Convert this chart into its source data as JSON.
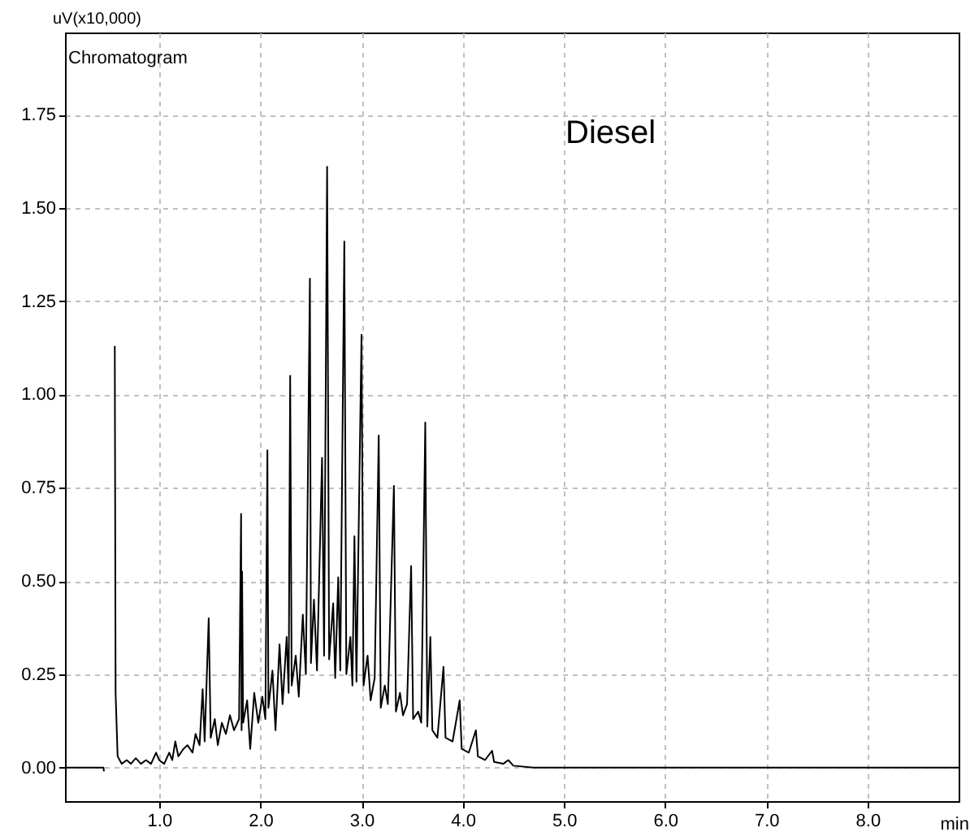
{
  "chart_data": {
    "type": "line",
    "xlabel": "min",
    "ylabel": "uV(x10,000)",
    "annotations": [
      "Chromatogram",
      "Diesel"
    ],
    "xlim": [
      0.07,
      8.9
    ],
    "ylim": [
      -0.09,
      1.97
    ],
    "xticks": [
      {
        "value": 1,
        "label": "1.0"
      },
      {
        "value": 2,
        "label": "2.0"
      },
      {
        "value": 3,
        "label": "3.0"
      },
      {
        "value": 4,
        "label": "4.0"
      },
      {
        "value": 5,
        "label": "5.0"
      },
      {
        "value": 6,
        "label": "6.0"
      },
      {
        "value": 7,
        "label": "7.0"
      },
      {
        "value": 8,
        "label": "8.0"
      }
    ],
    "yticks": [
      {
        "value": 0,
        "label": "0.00"
      },
      {
        "value": 0.25,
        "label": "0.25"
      },
      {
        "value": 0.5,
        "label": "0.50"
      },
      {
        "value": 0.75,
        "label": "0.75"
      },
      {
        "value": 1,
        "label": "1.00"
      },
      {
        "value": 1.25,
        "label": "1.25"
      },
      {
        "value": 1.5,
        "label": "1.50"
      },
      {
        "value": 1.75,
        "label": "1.75"
      }
    ],
    "grid": true,
    "marker": "none",
    "line_style": "solid",
    "x": [
      0.07,
      0.45,
      0.455,
      0.46,
      0.56,
      0.562,
      0.57,
      0.59,
      0.63,
      0.68,
      0.72,
      0.77,
      0.82,
      0.87,
      0.92,
      0.97,
      1.0,
      1.05,
      1.1,
      1.13,
      1.16,
      1.19,
      1.24,
      1.28,
      1.33,
      1.36,
      1.4,
      1.43,
      1.45,
      1.49,
      1.51,
      1.55,
      1.58,
      1.62,
      1.66,
      1.7,
      1.74,
      1.79,
      1.81,
      1.815,
      1.82,
      1.83,
      1.87,
      1.9,
      1.94,
      1.98,
      2.02,
      2.05,
      2.07,
      2.08,
      2.12,
      2.15,
      2.19,
      2.22,
      2.26,
      2.28,
      2.295,
      2.31,
      2.35,
      2.38,
      2.42,
      2.45,
      2.49,
      2.5,
      2.53,
      2.56,
      2.61,
      2.63,
      2.66,
      2.68,
      2.72,
      2.74,
      2.77,
      2.79,
      2.83,
      2.85,
      2.89,
      2.91,
      2.93,
      2.95,
      3.0,
      3.02,
      3.06,
      3.09,
      3.13,
      3.17,
      3.19,
      3.23,
      3.26,
      3.32,
      3.34,
      3.38,
      3.41,
      3.45,
      3.49,
      3.51,
      3.56,
      3.59,
      3.63,
      3.65,
      3.68,
      3.7,
      3.75,
      3.81,
      3.83,
      3.9,
      3.97,
      3.99,
      4.06,
      4.13,
      4.15,
      4.22,
      4.29,
      4.31,
      4.4,
      4.45,
      4.5,
      4.7,
      5.0,
      6.0,
      7.0,
      8.0,
      8.9
    ],
    "series": [
      {
        "color": "#000000",
        "values": [
          0.0,
          0.0,
          -0.01,
          null,
          null,
          1.13,
          0.2,
          0.03,
          0.01,
          0.02,
          0.01,
          0.025,
          0.01,
          0.02,
          0.01,
          0.04,
          0.02,
          0.01,
          0.04,
          0.02,
          0.07,
          0.03,
          0.05,
          0.06,
          0.04,
          0.09,
          0.06,
          0.21,
          0.07,
          0.4,
          0.08,
          0.13,
          0.06,
          0.12,
          0.09,
          0.14,
          0.1,
          0.13,
          0.68,
          0.1,
          0.525,
          0.12,
          0.18,
          0.05,
          0.2,
          0.12,
          0.19,
          0.13,
          0.85,
          0.16,
          0.26,
          0.1,
          0.33,
          0.17,
          0.35,
          0.2,
          1.05,
          0.22,
          0.3,
          0.19,
          0.41,
          0.25,
          1.31,
          0.28,
          0.45,
          0.26,
          0.83,
          0.3,
          1.61,
          0.29,
          0.44,
          0.24,
          0.51,
          0.26,
          1.41,
          0.25,
          0.35,
          0.22,
          0.62,
          0.23,
          1.16,
          0.22,
          0.3,
          0.18,
          0.24,
          0.89,
          0.16,
          0.22,
          0.17,
          0.755,
          0.15,
          0.2,
          0.14,
          0.17,
          0.54,
          0.13,
          0.15,
          0.12,
          0.925,
          0.11,
          0.35,
          0.1,
          0.08,
          0.27,
          0.08,
          0.07,
          0.18,
          0.05,
          0.04,
          0.1,
          0.03,
          0.02,
          0.045,
          0.015,
          0.01,
          0.02,
          0.005,
          0.0,
          0.0,
          0.0,
          0.0,
          0.0,
          0.0
        ]
      }
    ]
  }
}
